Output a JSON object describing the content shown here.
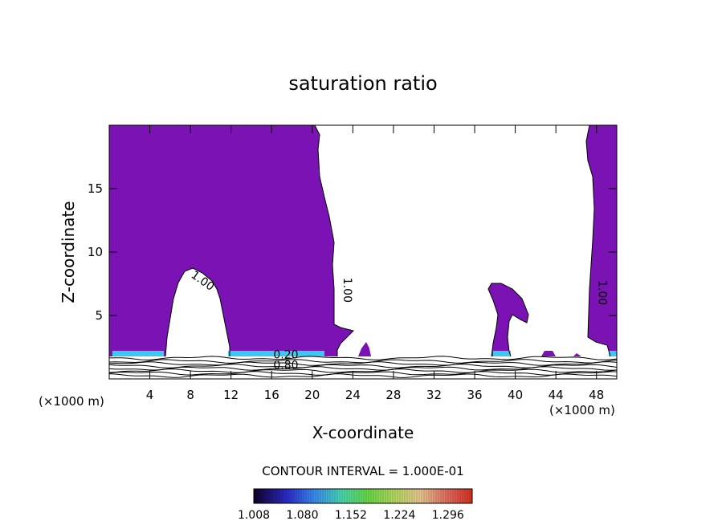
{
  "chart_data": {
    "type": "contour",
    "title": "saturation ratio",
    "xlabel": "X-coordinate",
    "ylabel": "Z-coordinate",
    "x_unit_label": "(×1000 m)",
    "z_unit_label": "(×1000 m)",
    "xlim": [
      0,
      50
    ],
    "ylim": [
      0,
      20
    ],
    "x_ticks": [
      4,
      8,
      12,
      16,
      20,
      24,
      28,
      32,
      36,
      40,
      44,
      48
    ],
    "y_ticks": [
      5,
      10,
      15
    ],
    "contour_interval_text": "CONTOUR INTERVAL = 1.000E-01",
    "contour_labels": [
      {
        "text": "1.00",
        "x": 9.0,
        "y": 7.5
      },
      {
        "text": "1.00",
        "x": 23.1,
        "y": 7.0
      },
      {
        "text": "1.00",
        "x": 48.2,
        "y": 6.8
      },
      {
        "text": "0.80",
        "x": 17.4,
        "y": 0.8
      },
      {
        "text": "0.20",
        "x": 17.4,
        "y": 1.6
      }
    ],
    "colorbar": {
      "min": 1.008,
      "max": 1.332,
      "tick_labels": [
        "1.008",
        "1.080",
        "1.152",
        "1.224",
        "1.296"
      ],
      "tick_values": [
        1.008,
        1.08,
        1.152,
        1.224,
        1.296
      ]
    },
    "colors": {
      "supersaturated_fill": "#7b12b4",
      "lowlevel_band": "#3cc8f0",
      "contour_line": "#000000",
      "background": "#ffffff"
    }
  }
}
